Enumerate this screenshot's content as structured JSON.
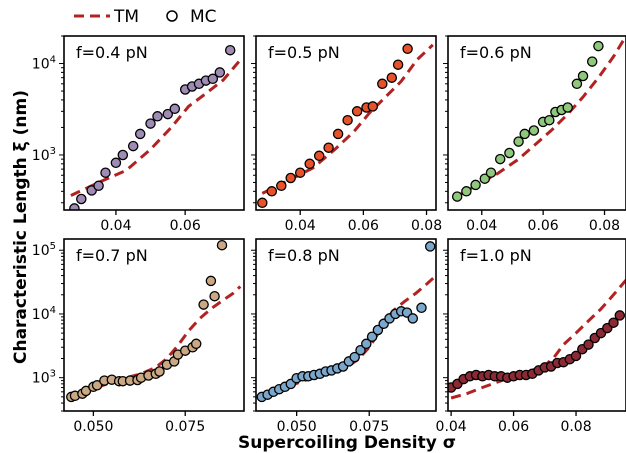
{
  "legend": {
    "tm_label": "TM",
    "mc_label": "MC",
    "tm_color": "#b22222",
    "mc_edge_color": "#000000"
  },
  "xlabel": "Supercoiling Density σ",
  "ylabel": "Characteristic Length ξ (nm)",
  "chart_data": [
    {
      "type": "scatter",
      "label": "f=0.4 pN",
      "scale": "log-y",
      "xlim": [
        0.025,
        0.077
      ],
      "ylim": [
        250,
        20000
      ],
      "xticks": [
        0.04,
        0.06
      ],
      "xtick_labels": [
        "0.04",
        "0.06"
      ],
      "yticks": [
        1000,
        10000
      ],
      "ytick_labels": [
        "10^3",
        "10^4"
      ],
      "marker_color": "#9e8cb5",
      "series": [
        {
          "name": "TM",
          "x": [
            0.027,
            0.035,
            0.043,
            0.05,
            0.056,
            0.061,
            0.066,
            0.071,
            0.076
          ],
          "y": [
            360,
            500,
            680,
            1150,
            2000,
            3400,
            4700,
            6600,
            11000
          ]
        },
        {
          "name": "MC",
          "x": [
            0.028,
            0.03,
            0.033,
            0.035,
            0.037,
            0.04,
            0.042,
            0.045,
            0.047,
            0.05,
            0.052,
            0.055,
            0.057,
            0.06,
            0.062,
            0.064,
            0.066,
            0.068,
            0.07,
            0.073
          ],
          "y": [
            260,
            330,
            410,
            460,
            640,
            820,
            1000,
            1250,
            1700,
            2200,
            2650,
            2800,
            3200,
            5200,
            5600,
            6000,
            6500,
            6800,
            8000,
            14000
          ]
        }
      ]
    },
    {
      "type": "scatter",
      "label": "f=0.5 pN",
      "scale": "log-y",
      "xlim": [
        0.026,
        0.083
      ],
      "ylim": [
        250,
        20000
      ],
      "xticks": [
        0.04,
        0.06,
        0.08
      ],
      "xtick_labels": [
        "0.04",
        "0.06",
        "0.08"
      ],
      "yticks": [
        1000,
        10000
      ],
      "ytick_labels": [
        "",
        ""
      ],
      "marker_color": "#e8522a",
      "series": [
        {
          "name": "TM",
          "x": [
            0.028,
            0.036,
            0.044,
            0.051,
            0.057,
            0.062,
            0.067,
            0.072,
            0.077,
            0.082
          ],
          "y": [
            380,
            520,
            720,
            1150,
            1800,
            2900,
            4300,
            6400,
            11000,
            16000
          ]
        },
        {
          "name": "MC",
          "x": [
            0.028,
            0.031,
            0.034,
            0.037,
            0.04,
            0.043,
            0.046,
            0.049,
            0.052,
            0.055,
            0.058,
            0.061,
            0.063,
            0.066,
            0.069,
            0.071,
            0.074
          ],
          "y": [
            300,
            400,
            460,
            560,
            640,
            800,
            980,
            1200,
            1700,
            2400,
            3000,
            3300,
            3400,
            6000,
            7000,
            9700,
            14500
          ]
        }
      ]
    },
    {
      "type": "scatter",
      "label": "f=0.6 pN",
      "scale": "log-y",
      "xlim": [
        0.029,
        0.087
      ],
      "ylim": [
        250,
        20000
      ],
      "xticks": [
        0.04,
        0.06,
        0.08
      ],
      "xtick_labels": [
        "0.04",
        "0.06",
        "0.08"
      ],
      "yticks": [
        1000,
        10000
      ],
      "ytick_labels": [
        "",
        ""
      ],
      "marker_color": "#8fc77c",
      "series": [
        {
          "name": "TM",
          "x": [
            0.031,
            0.038,
            0.045,
            0.052,
            0.058,
            0.063,
            0.068,
            0.073,
            0.078,
            0.083,
            0.087
          ],
          "y": [
            340,
            460,
            620,
            900,
            1350,
            1900,
            2800,
            4300,
            7000,
            12000,
            20000
          ]
        },
        {
          "name": "MC",
          "x": [
            0.032,
            0.035,
            0.038,
            0.041,
            0.043,
            0.046,
            0.049,
            0.052,
            0.054,
            0.057,
            0.06,
            0.062,
            0.064,
            0.066,
            0.068,
            0.071,
            0.073,
            0.076,
            0.078
          ],
          "y": [
            350,
            400,
            470,
            550,
            640,
            900,
            1050,
            1400,
            1700,
            1850,
            2300,
            2400,
            2950,
            3100,
            3300,
            6000,
            7300,
            10500,
            15500
          ]
        }
      ]
    },
    {
      "type": "scatter",
      "label": "f=0.7 pN",
      "scale": "log-y",
      "xlim": [
        0.042,
        0.091
      ],
      "ylim": [
        300,
        150000
      ],
      "xticks": [
        0.05,
        0.075
      ],
      "xtick_labels": [
        "0.050",
        "0.075"
      ],
      "yticks": [
        1000,
        10000,
        100000
      ],
      "ytick_labels": [
        "10^3",
        "10^4",
        "10^5"
      ],
      "marker_color": "#c9a883",
      "series": [
        {
          "name": "TM",
          "x": [
            0.043,
            0.047,
            0.051,
            0.055,
            0.059,
            0.063,
            0.067,
            0.07,
            0.073,
            0.076,
            0.079,
            0.082,
            0.085,
            0.088,
            0.09
          ],
          "y": [
            480,
            560,
            700,
            850,
            1000,
            1150,
            1450,
            2000,
            3200,
            5500,
            8500,
            12000,
            16000,
            21000,
            27000
          ]
        },
        {
          "name": "MC",
          "x": [
            0.044,
            0.045,
            0.047,
            0.048,
            0.05,
            0.051,
            0.053,
            0.055,
            0.057,
            0.058,
            0.06,
            0.062,
            0.063,
            0.065,
            0.067,
            0.068,
            0.07,
            0.072,
            0.073,
            0.075,
            0.077,
            0.078,
            0.08,
            0.082,
            0.083,
            0.085
          ],
          "y": [
            500,
            520,
            560,
            620,
            720,
            760,
            900,
            930,
            880,
            880,
            900,
            920,
            1000,
            1080,
            1150,
            1250,
            1600,
            1800,
            2300,
            2650,
            3000,
            3400,
            14000,
            33000,
            19000,
            120000
          ]
        }
      ]
    },
    {
      "type": "scatter",
      "label": "f=0.8 pN",
      "scale": "log-y",
      "xlim": [
        0.036,
        0.098
      ],
      "ylim": [
        300,
        150000
      ],
      "xticks": [
        0.05,
        0.075
      ],
      "xtick_labels": [
        "0.050",
        "0.075"
      ],
      "yticks": [
        1000,
        10000,
        100000
      ],
      "ytick_labels": [
        "",
        "",
        ""
      ],
      "marker_color": "#7ba7cc",
      "series": [
        {
          "name": "TM",
          "x": [
            0.037,
            0.042,
            0.047,
            0.052,
            0.057,
            0.062,
            0.067,
            0.071,
            0.075,
            0.079,
            0.083,
            0.087,
            0.091,
            0.095,
            0.098
          ],
          "y": [
            520,
            600,
            720,
            880,
            1050,
            1200,
            1450,
            1900,
            3000,
            5700,
            11000,
            15500,
            21000,
            30000,
            40000
          ]
        },
        {
          "name": "MC",
          "x": [
            0.038,
            0.04,
            0.042,
            0.044,
            0.046,
            0.048,
            0.05,
            0.052,
            0.054,
            0.056,
            0.058,
            0.06,
            0.062,
            0.064,
            0.066,
            0.068,
            0.07,
            0.072,
            0.074,
            0.076,
            0.078,
            0.08,
            0.082,
            0.084,
            0.086,
            0.088,
            0.09,
            0.093,
            0.096
          ],
          "y": [
            500,
            540,
            600,
            660,
            720,
            800,
            980,
            1050,
            1050,
            1100,
            1150,
            1250,
            1300,
            1400,
            1500,
            1800,
            2100,
            2700,
            3400,
            4400,
            5600,
            7000,
            8500,
            10000,
            11000,
            10500,
            8500,
            12500,
            115000
          ]
        }
      ]
    },
    {
      "type": "scatter",
      "label": "f=1.0 pN",
      "scale": "log-y",
      "xlim": [
        0.039,
        0.096
      ],
      "ylim": [
        300,
        150000
      ],
      "xticks": [
        0.04,
        0.06,
        0.08
      ],
      "xtick_labels": [
        "0.04",
        "0.06",
        "0.08"
      ],
      "yticks": [
        1000,
        10000,
        100000
      ],
      "ytick_labels": [
        "",
        "",
        ""
      ],
      "marker_color": "#8b2a35",
      "series": [
        {
          "name": "TM",
          "x": [
            0.04,
            0.045,
            0.05,
            0.055,
            0.06,
            0.065,
            0.07,
            0.073,
            0.076,
            0.08,
            0.084,
            0.088,
            0.092,
            0.096
          ],
          "y": [
            480,
            560,
            700,
            860,
            1050,
            1250,
            1550,
            2100,
            3300,
            5000,
            7800,
            12000,
            20000,
            34000
          ]
        },
        {
          "name": "MC",
          "x": [
            0.04,
            0.042,
            0.044,
            0.046,
            0.048,
            0.05,
            0.052,
            0.054,
            0.056,
            0.058,
            0.06,
            0.062,
            0.064,
            0.066,
            0.068,
            0.07,
            0.072,
            0.074,
            0.076,
            0.078,
            0.08,
            0.082,
            0.084,
            0.086,
            0.088,
            0.09,
            0.092,
            0.094
          ],
          "y": [
            700,
            800,
            950,
            1050,
            1100,
            1050,
            1100,
            1050,
            1050,
            1000,
            1050,
            1100,
            1100,
            1150,
            1300,
            1450,
            1500,
            1700,
            1750,
            1950,
            2200,
            2800,
            3300,
            4200,
            5000,
            6000,
            7300,
            9500
          ]
        }
      ]
    }
  ]
}
